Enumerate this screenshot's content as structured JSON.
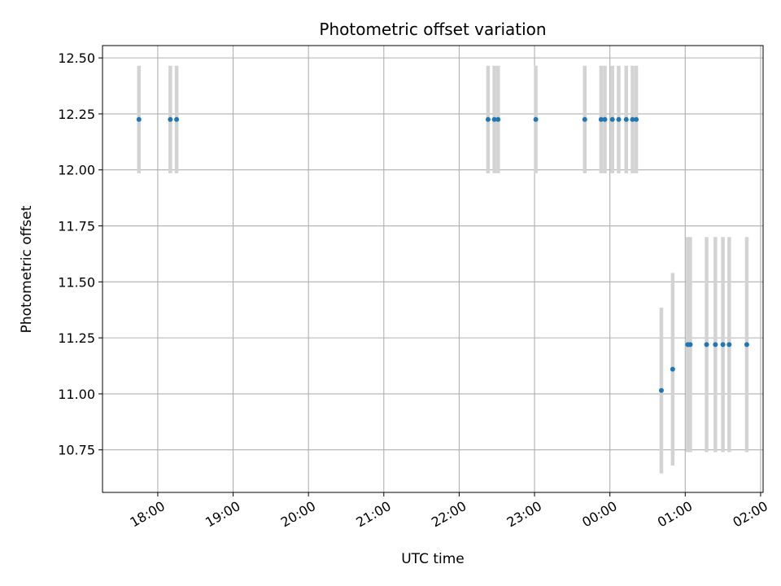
{
  "chart_data": {
    "type": "scatter",
    "title": "Photometric offset variation",
    "xlabel": "UTC time",
    "ylabel": "Photometric offset",
    "x_tick_labels": [
      "18:00",
      "19:00",
      "20:00",
      "21:00",
      "22:00",
      "23:00",
      "00:00",
      "01:00",
      "02:00"
    ],
    "y_tick_labels": [
      "10.75",
      "11.00",
      "11.25",
      "11.50",
      "11.75",
      "12.00",
      "12.25",
      "12.50"
    ],
    "grid": true,
    "series": [
      {
        "color": "#1f77b4",
        "errorbar_color": "#d3d3d3",
        "points": [
          {
            "x": "17:45",
            "y": 12.225,
            "err": 0.24
          },
          {
            "x": "18:10",
            "y": 12.225,
            "err": 0.24
          },
          {
            "x": "18:15",
            "y": 12.225,
            "err": 0.24
          },
          {
            "x": "22:23",
            "y": 12.225,
            "err": 0.24
          },
          {
            "x": "22:28",
            "y": 12.225,
            "err": 0.24
          },
          {
            "x": "22:31",
            "y": 12.225,
            "err": 0.24
          },
          {
            "x": "23:01",
            "y": 12.225,
            "err": 0.24
          },
          {
            "x": "23:40",
            "y": 12.225,
            "err": 0.24
          },
          {
            "x": "23:53",
            "y": 12.225,
            "err": 0.24
          },
          {
            "x": "23:56",
            "y": 12.225,
            "err": 0.24
          },
          {
            "x": "00:02",
            "y": 12.225,
            "err": 0.24
          },
          {
            "x": "00:07",
            "y": 12.225,
            "err": 0.24
          },
          {
            "x": "00:13",
            "y": 12.225,
            "err": 0.24
          },
          {
            "x": "00:18",
            "y": 12.225,
            "err": 0.24
          },
          {
            "x": "00:21",
            "y": 12.225,
            "err": 0.24
          },
          {
            "x": "00:41",
            "y": 11.015,
            "err": 0.37
          },
          {
            "x": "00:50",
            "y": 11.11,
            "err": 0.43
          },
          {
            "x": "01:02",
            "y": 11.22,
            "err": 0.48
          },
          {
            "x": "01:04",
            "y": 11.22,
            "err": 0.48
          },
          {
            "x": "01:17",
            "y": 11.22,
            "err": 0.48
          },
          {
            "x": "01:24",
            "y": 11.22,
            "err": 0.48
          },
          {
            "x": "01:30",
            "y": 11.22,
            "err": 0.48
          },
          {
            "x": "01:35",
            "y": 11.22,
            "err": 0.48
          },
          {
            "x": "01:49",
            "y": 11.22,
            "err": 0.48
          }
        ]
      }
    ]
  }
}
